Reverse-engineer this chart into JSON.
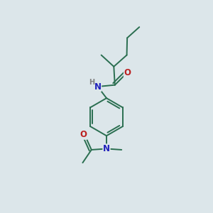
{
  "background_color": "#dce6ea",
  "bond_color": "#2a6e50",
  "N_color": "#2020bb",
  "O_color": "#bb2020",
  "H_color": "#808080",
  "line_width": 1.4,
  "font_size": 8.5,
  "fig_size": [
    3.0,
    3.0
  ],
  "dpi": 100,
  "xlim": [
    0,
    10
  ],
  "ylim": [
    0,
    10
  ]
}
